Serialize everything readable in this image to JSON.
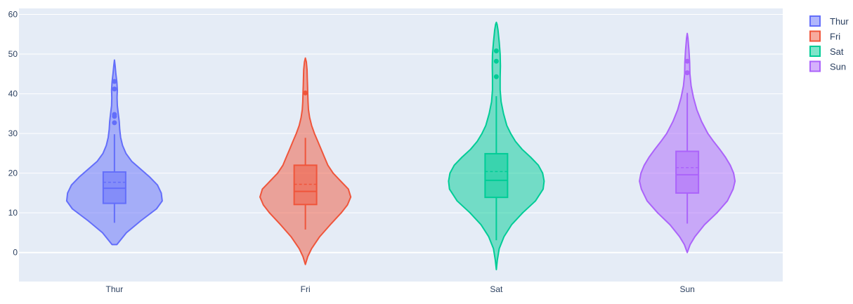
{
  "chart_data": {
    "type": "violin",
    "categories": [
      "Thur",
      "Fri",
      "Sat",
      "Sun"
    ],
    "ylim": [
      -7.3,
      61.5
    ],
    "yticks": [
      0,
      10,
      20,
      30,
      40,
      50,
      60
    ],
    "grid": true,
    "legend_position": "top-right",
    "series": [
      {
        "name": "Thur",
        "color": "#636efa",
        "range": [
          2,
          48.5
        ],
        "box": {
          "q1": 12.4,
          "median": 16.2,
          "mean": 17.7,
          "q3": 20.3,
          "whisker_low": 7.5,
          "whisker_high": 29.8
        },
        "outliers": [
          32.7,
          34.3,
          34.8,
          41.2,
          43.1
        ],
        "density": [
          [
            2,
            0.05
          ],
          [
            5,
            0.25
          ],
          [
            8,
            0.55
          ],
          [
            11,
            0.88
          ],
          [
            13,
            1.0
          ],
          [
            15,
            0.98
          ],
          [
            17,
            0.9
          ],
          [
            19,
            0.74
          ],
          [
            21,
            0.55
          ],
          [
            23,
            0.36
          ],
          [
            25,
            0.24
          ],
          [
            27,
            0.17
          ],
          [
            29,
            0.13
          ],
          [
            31,
            0.11
          ],
          [
            33,
            0.1
          ],
          [
            35,
            0.08
          ],
          [
            37,
            0.06
          ],
          [
            39,
            0.055
          ],
          [
            41,
            0.06
          ],
          [
            43,
            0.05
          ],
          [
            45,
            0.03
          ],
          [
            47,
            0.015
          ],
          [
            48.5,
            0
          ]
        ]
      },
      {
        "name": "Fri",
        "color": "#ef553b",
        "range": [
          -3,
          49
        ],
        "box": {
          "q1": 12.1,
          "median": 15.4,
          "mean": 17.2,
          "q3": 22.0,
          "whisker_low": 5.8,
          "whisker_high": 28.9
        },
        "outliers": [
          40.2
        ],
        "density": [
          [
            -3,
            0
          ],
          [
            -1,
            0.05
          ],
          [
            1,
            0.13
          ],
          [
            4,
            0.3
          ],
          [
            7,
            0.52
          ],
          [
            10,
            0.75
          ],
          [
            12,
            0.88
          ],
          [
            14,
            0.95
          ],
          [
            16,
            0.9
          ],
          [
            18,
            0.74
          ],
          [
            20,
            0.58
          ],
          [
            22,
            0.47
          ],
          [
            24,
            0.4
          ],
          [
            26,
            0.33
          ],
          [
            28,
            0.26
          ],
          [
            30,
            0.19
          ],
          [
            32,
            0.13
          ],
          [
            34,
            0.09
          ],
          [
            36,
            0.065
          ],
          [
            38,
            0.055
          ],
          [
            40,
            0.05
          ],
          [
            42,
            0.045
          ],
          [
            44,
            0.04
          ],
          [
            46,
            0.035
          ],
          [
            48,
            0.02
          ],
          [
            49,
            0
          ]
        ]
      },
      {
        "name": "Sat",
        "color": "#00cc96",
        "range": [
          -4.3,
          58
        ],
        "box": {
          "q1": 13.9,
          "median": 18.2,
          "mean": 20.4,
          "q3": 24.9,
          "whisker_low": 3.1,
          "whisker_high": 39.4
        },
        "outliers": [
          44.3,
          48.2,
          50.8
        ],
        "density": [
          [
            -4.3,
            0
          ],
          [
            -2,
            0.02
          ],
          [
            1,
            0.06
          ],
          [
            4,
            0.16
          ],
          [
            7,
            0.32
          ],
          [
            10,
            0.55
          ],
          [
            13,
            0.82
          ],
          [
            16,
            0.98
          ],
          [
            18,
            1.0
          ],
          [
            20,
            0.97
          ],
          [
            22,
            0.88
          ],
          [
            24,
            0.72
          ],
          [
            26,
            0.54
          ],
          [
            28,
            0.4
          ],
          [
            30,
            0.3
          ],
          [
            32,
            0.22
          ],
          [
            35,
            0.15
          ],
          [
            38,
            0.1
          ],
          [
            41,
            0.08
          ],
          [
            44,
            0.08
          ],
          [
            47,
            0.085
          ],
          [
            50,
            0.08
          ],
          [
            53,
            0.06
          ],
          [
            56,
            0.035
          ],
          [
            57.5,
            0.015
          ],
          [
            58,
            0
          ]
        ]
      },
      {
        "name": "Sun",
        "color": "#ab63fa",
        "range": [
          0,
          55.2
        ],
        "box": {
          "q1": 15.0,
          "median": 19.6,
          "mean": 21.4,
          "q3": 25.5,
          "whisker_low": 7.3,
          "whisker_high": 40.2
        },
        "outliers": [
          45.3,
          48.2
        ],
        "density": [
          [
            0,
            0
          ],
          [
            2,
            0.06
          ],
          [
            4,
            0.16
          ],
          [
            7,
            0.36
          ],
          [
            10,
            0.62
          ],
          [
            13,
            0.84
          ],
          [
            16,
            0.96
          ],
          [
            18,
            1.0
          ],
          [
            20,
            0.97
          ],
          [
            22,
            0.9
          ],
          [
            24,
            0.8
          ],
          [
            26,
            0.68
          ],
          [
            28,
            0.55
          ],
          [
            30,
            0.43
          ],
          [
            33,
            0.3
          ],
          [
            36,
            0.2
          ],
          [
            39,
            0.13
          ],
          [
            42,
            0.08
          ],
          [
            45,
            0.055
          ],
          [
            48,
            0.05
          ],
          [
            51,
            0.035
          ],
          [
            54,
            0.015
          ],
          [
            55.2,
            0
          ]
        ]
      }
    ]
  }
}
